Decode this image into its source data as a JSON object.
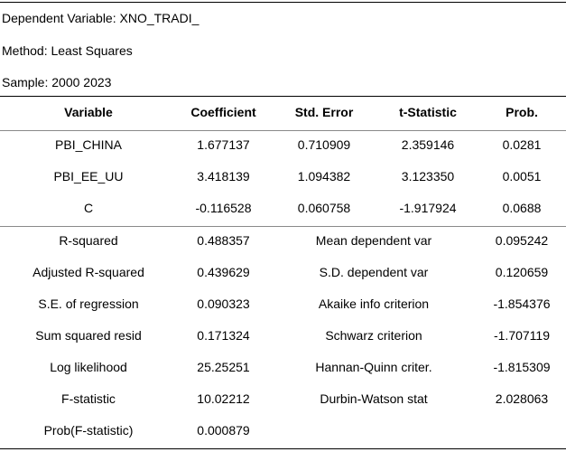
{
  "meta": {
    "dependent_variable": "Dependent Variable: XNO_TRADI_",
    "method": "Method: Least Squares",
    "sample": "Sample: 2000 2023"
  },
  "coefficients_table": {
    "headers": [
      "Variable",
      "Coefficient",
      "Std. Error",
      "t-Statistic",
      "Prob."
    ],
    "rows": [
      [
        "PBI_CHINA",
        "1.677137",
        "0.710909",
        "2.359146",
        "0.0281"
      ],
      [
        "PBI_EE_UU",
        "3.418139",
        "1.094382",
        "3.123350",
        "0.0051"
      ],
      [
        "C",
        "-0.116528",
        "0.060758",
        "-1.917924",
        "0.0688"
      ]
    ]
  },
  "statistics_table": {
    "rows": [
      [
        "R-squared",
        "0.488357",
        "Mean dependent var",
        "0.095242"
      ],
      [
        "Adjusted R-squared",
        "0.439629",
        "S.D. dependent var",
        "0.120659"
      ],
      [
        "S.E. of regression",
        "0.090323",
        "Akaike info criterion",
        "-1.854376"
      ],
      [
        "Sum squared resid",
        "0.171324",
        "Schwarz criterion",
        "-1.707119"
      ],
      [
        "Log likelihood",
        "25.25251",
        "Hannan-Quinn criter.",
        "-1.815309"
      ],
      [
        "F-statistic",
        "10.02212",
        "Durbin-Watson stat",
        "2.028063"
      ],
      [
        "Prob(F-statistic)",
        "0.000879",
        "",
        ""
      ]
    ]
  }
}
